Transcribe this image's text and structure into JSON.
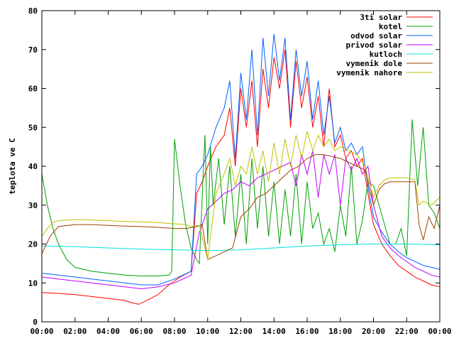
{
  "chart_data": {
    "type": "line",
    "title": "",
    "xlabel": "",
    "ylabel": "teplota ve C",
    "ylim": [
      0,
      80
    ],
    "yticks": [
      0,
      10,
      20,
      30,
      40,
      50,
      60,
      70,
      80
    ],
    "xlim": [
      "00:00",
      "24:00"
    ],
    "xtick_labels": [
      "00:00",
      "02:00",
      "04:00",
      "06:00",
      "08:00",
      "10:00",
      "12:00",
      "14:00",
      "16:00",
      "18:00",
      "20:00",
      "22:00",
      "00:00"
    ],
    "grid": false,
    "legend_position": "top-right",
    "series": [
      {
        "name": "3ti solar",
        "color": "#ff0000",
        "x": [
          "00:00",
          "01:00",
          "02:00",
          "03:00",
          "04:00",
          "05:00",
          "05:20",
          "05:50",
          "06:20",
          "07:00",
          "07:40",
          "08:20",
          "09:00",
          "09:20",
          "09:40",
          "10:00",
          "10:30",
          "11:00",
          "11:20",
          "11:40",
          "12:00",
          "12:20",
          "12:40",
          "13:00",
          "13:20",
          "13:40",
          "14:00",
          "14:20",
          "14:40",
          "15:00",
          "15:20",
          "15:40",
          "16:00",
          "16:20",
          "16:40",
          "17:00",
          "17:20",
          "17:40",
          "18:00",
          "18:20",
          "18:40",
          "19:00",
          "19:20",
          "19:40",
          "20:00",
          "20:30",
          "21:00",
          "21:30",
          "22:00",
          "22:30",
          "23:00",
          "23:30",
          "24:00"
        ],
        "y": [
          7.5,
          7.3,
          7.0,
          6.5,
          6.0,
          5.5,
          5.0,
          4.5,
          5.5,
          7.0,
          9.5,
          11.5,
          13.0,
          33.0,
          36.0,
          40.0,
          45.0,
          48.0,
          55.0,
          40.0,
          60.0,
          50.0,
          62.0,
          45.0,
          65.0,
          55.0,
          68.0,
          60.0,
          70.0,
          50.0,
          67.0,
          55.0,
          63.0,
          50.0,
          58.0,
          45.0,
          60.0,
          45.0,
          48.0,
          42.0,
          44.0,
          40.0,
          42.0,
          33.0,
          25.0,
          20.0,
          17.0,
          14.5,
          13.0,
          11.5,
          10.5,
          9.5,
          9.0
        ]
      },
      {
        "name": "kotel",
        "color": "#00a000",
        "x": [
          "00:00",
          "00:20",
          "00:40",
          "01:00",
          "01:30",
          "02:00",
          "03:00",
          "04:00",
          "05:00",
          "06:00",
          "07:00",
          "07:40",
          "07:50",
          "08:00",
          "08:20",
          "08:40",
          "09:00",
          "09:20",
          "09:30",
          "09:40",
          "09:50",
          "10:00",
          "10:10",
          "10:20",
          "10:40",
          "11:00",
          "11:20",
          "11:40",
          "12:00",
          "12:20",
          "12:40",
          "13:00",
          "13:20",
          "13:40",
          "14:00",
          "14:20",
          "14:40",
          "15:00",
          "15:20",
          "15:40",
          "16:00",
          "16:20",
          "16:40",
          "17:00",
          "17:20",
          "17:40",
          "18:00",
          "18:20",
          "18:40",
          "19:00",
          "19:20",
          "19:40",
          "20:00",
          "20:20",
          "20:40",
          "21:00",
          "21:20",
          "21:40",
          "22:00",
          "22:20",
          "22:40",
          "23:00",
          "23:20",
          "23:40",
          "24:00"
        ],
        "y": [
          38,
          30,
          24,
          20,
          16,
          14,
          13,
          12.5,
          12,
          11.8,
          11.8,
          12,
          13,
          47,
          35,
          25,
          19,
          16,
          15,
          32,
          48,
          20,
          45,
          30,
          42,
          25,
          40,
          22,
          38,
          20,
          42,
          24,
          40,
          22,
          36,
          20,
          34,
          22,
          38,
          20,
          36,
          24,
          28,
          20,
          24,
          18,
          30,
          22,
          40,
          20,
          26,
          36,
          35,
          30,
          25,
          20,
          20,
          24,
          17,
          52,
          35,
          50,
          30,
          28,
          24
        ]
      },
      {
        "name": "odvod solar",
        "color": "#0060ff",
        "x": [
          "00:00",
          "01:00",
          "02:00",
          "03:00",
          "04:00",
          "05:00",
          "06:00",
          "07:00",
          "08:00",
          "09:00",
          "09:20",
          "09:40",
          "10:00",
          "10:30",
          "11:00",
          "11:20",
          "11:40",
          "12:00",
          "12:20",
          "12:40",
          "13:00",
          "13:20",
          "13:40",
          "14:00",
          "14:20",
          "14:40",
          "15:00",
          "15:20",
          "15:40",
          "16:00",
          "16:20",
          "16:40",
          "17:00",
          "17:20",
          "17:40",
          "18:00",
          "18:20",
          "18:40",
          "19:00",
          "19:20",
          "19:40",
          "20:00",
          "20:30",
          "21:00",
          "21:30",
          "22:00",
          "22:30",
          "23:00",
          "23:30",
          "24:00"
        ],
        "y": [
          12.5,
          12.0,
          11.5,
          11.0,
          10.5,
          10.0,
          9.5,
          9.5,
          11.0,
          13.0,
          38.0,
          40.0,
          43.0,
          50.0,
          55.0,
          62.0,
          42.0,
          64.0,
          52.0,
          70.0,
          48.0,
          73.0,
          58.0,
          74.0,
          62.0,
          73.0,
          52.0,
          70.0,
          58.0,
          67.0,
          52.0,
          62.0,
          48.0,
          58.0,
          46.0,
          50.0,
          44.0,
          46.0,
          43.0,
          45.0,
          35.0,
          27.0,
          23.0,
          20.0,
          18.0,
          16.5,
          15.5,
          14.5,
          14.0,
          13.5
        ]
      },
      {
        "name": "privod solar",
        "color": "#c000ff",
        "x": [
          "00:00",
          "01:00",
          "02:00",
          "03:00",
          "04:00",
          "05:00",
          "06:00",
          "07:00",
          "08:00",
          "09:00",
          "09:30",
          "10:00",
          "10:30",
          "11:00",
          "11:30",
          "12:00",
          "12:30",
          "13:00",
          "13:30",
          "14:00",
          "14:30",
          "15:00",
          "15:20",
          "15:40",
          "16:00",
          "16:20",
          "16:40",
          "17:00",
          "17:20",
          "17:40",
          "18:00",
          "18:20",
          "18:40",
          "19:00",
          "19:20",
          "19:40",
          "20:00",
          "20:30",
          "21:00",
          "21:30",
          "22:00",
          "22:30",
          "23:00",
          "23:30",
          "24:00"
        ],
        "y": [
          11.5,
          11.0,
          10.5,
          10.0,
          9.5,
          9.0,
          8.5,
          9.0,
          10.0,
          12.0,
          23.0,
          29.0,
          31.0,
          33.0,
          34.0,
          36.0,
          35.0,
          37.0,
          38.0,
          39.0,
          40.0,
          41.0,
          35.0,
          43.0,
          38.0,
          44.0,
          32.0,
          43.0,
          38.0,
          43.0,
          30.0,
          42.0,
          39.0,
          42.0,
          38.0,
          40.0,
          30.0,
          22.0,
          19.0,
          17.0,
          15.5,
          14.0,
          13.0,
          12.0,
          11.5
        ]
      },
      {
        "name": "kutloch",
        "color": "#00e0e0",
        "x": [
          "00:00",
          "02:00",
          "04:00",
          "06:00",
          "08:00",
          "10:00",
          "12:00",
          "14:00",
          "16:00",
          "18:00",
          "20:00",
          "22:00",
          "24:00"
        ],
        "y": [
          19.5,
          19.3,
          19.0,
          18.7,
          18.5,
          18.3,
          18.5,
          19.0,
          19.5,
          19.8,
          20.0,
          20.0,
          19.8
        ]
      },
      {
        "name": "vymenik dole",
        "color": "#a04000",
        "x": [
          "00:00",
          "00:30",
          "01:00",
          "02:00",
          "03:00",
          "04:00",
          "05:00",
          "06:00",
          "07:00",
          "08:00",
          "08:40",
          "09:00",
          "09:20",
          "09:40",
          "10:00",
          "10:30",
          "11:00",
          "11:30",
          "12:00",
          "12:30",
          "13:00",
          "13:30",
          "14:00",
          "14:30",
          "15:00",
          "15:30",
          "16:00",
          "16:30",
          "17:00",
          "17:30",
          "18:00",
          "18:30",
          "19:00",
          "19:30",
          "20:00",
          "20:20",
          "20:40",
          "21:00",
          "21:30",
          "22:00",
          "22:30",
          "22:45",
          "23:00",
          "23:20",
          "23:40",
          "24:00"
        ],
        "y": [
          17.5,
          22.0,
          24.5,
          25.0,
          25.0,
          24.8,
          24.6,
          24.5,
          24.3,
          24.0,
          24.0,
          24.2,
          24.5,
          25.0,
          16.0,
          17.0,
          18.0,
          19.0,
          27.0,
          29.0,
          32.0,
          33.0,
          35.0,
          37.0,
          39.0,
          40.0,
          42.0,
          43.0,
          43.0,
          42.5,
          42.0,
          41.0,
          40.0,
          39.0,
          30.0,
          34.0,
          35.5,
          36.0,
          36.0,
          36.0,
          36.0,
          25.0,
          21.0,
          27.0,
          24.0,
          30.0
        ]
      },
      {
        "name": "vymenik nahore",
        "color": "#c0c000",
        "x": [
          "00:00",
          "00:20",
          "00:40",
          "01:00",
          "02:00",
          "03:00",
          "04:00",
          "05:00",
          "06:00",
          "07:00",
          "08:00",
          "08:40",
          "09:00",
          "09:30",
          "10:00",
          "10:30",
          "11:00",
          "11:20",
          "11:40",
          "12:00",
          "12:20",
          "12:40",
          "13:00",
          "13:20",
          "13:40",
          "14:00",
          "14:20",
          "14:40",
          "15:00",
          "15:20",
          "15:40",
          "16:00",
          "16:20",
          "16:40",
          "17:00",
          "17:20",
          "17:40",
          "18:00",
          "18:30",
          "19:00",
          "19:30",
          "20:00",
          "20:20",
          "20:40",
          "21:00",
          "21:30",
          "22:00",
          "22:30",
          "22:45",
          "23:00",
          "23:30",
          "24:00"
        ],
        "y": [
          22.0,
          24.0,
          25.5,
          26.0,
          26.3,
          26.2,
          26.0,
          25.8,
          25.7,
          25.5,
          25.2,
          25.0,
          24.5,
          24.8,
          16.0,
          33.0,
          38.0,
          42.0,
          35.0,
          40.0,
          38.0,
          45.0,
          38.0,
          44.0,
          36.0,
          46.0,
          38.0,
          47.0,
          40.0,
          48.0,
          42.0,
          49.0,
          44.0,
          48.0,
          45.0,
          47.0,
          44.0,
          45.0,
          44.0,
          43.0,
          40.0,
          32.0,
          35.0,
          36.5,
          37.0,
          37.0,
          37.0,
          36.5,
          30.0,
          31.0,
          30.0,
          32.0
        ]
      }
    ]
  }
}
